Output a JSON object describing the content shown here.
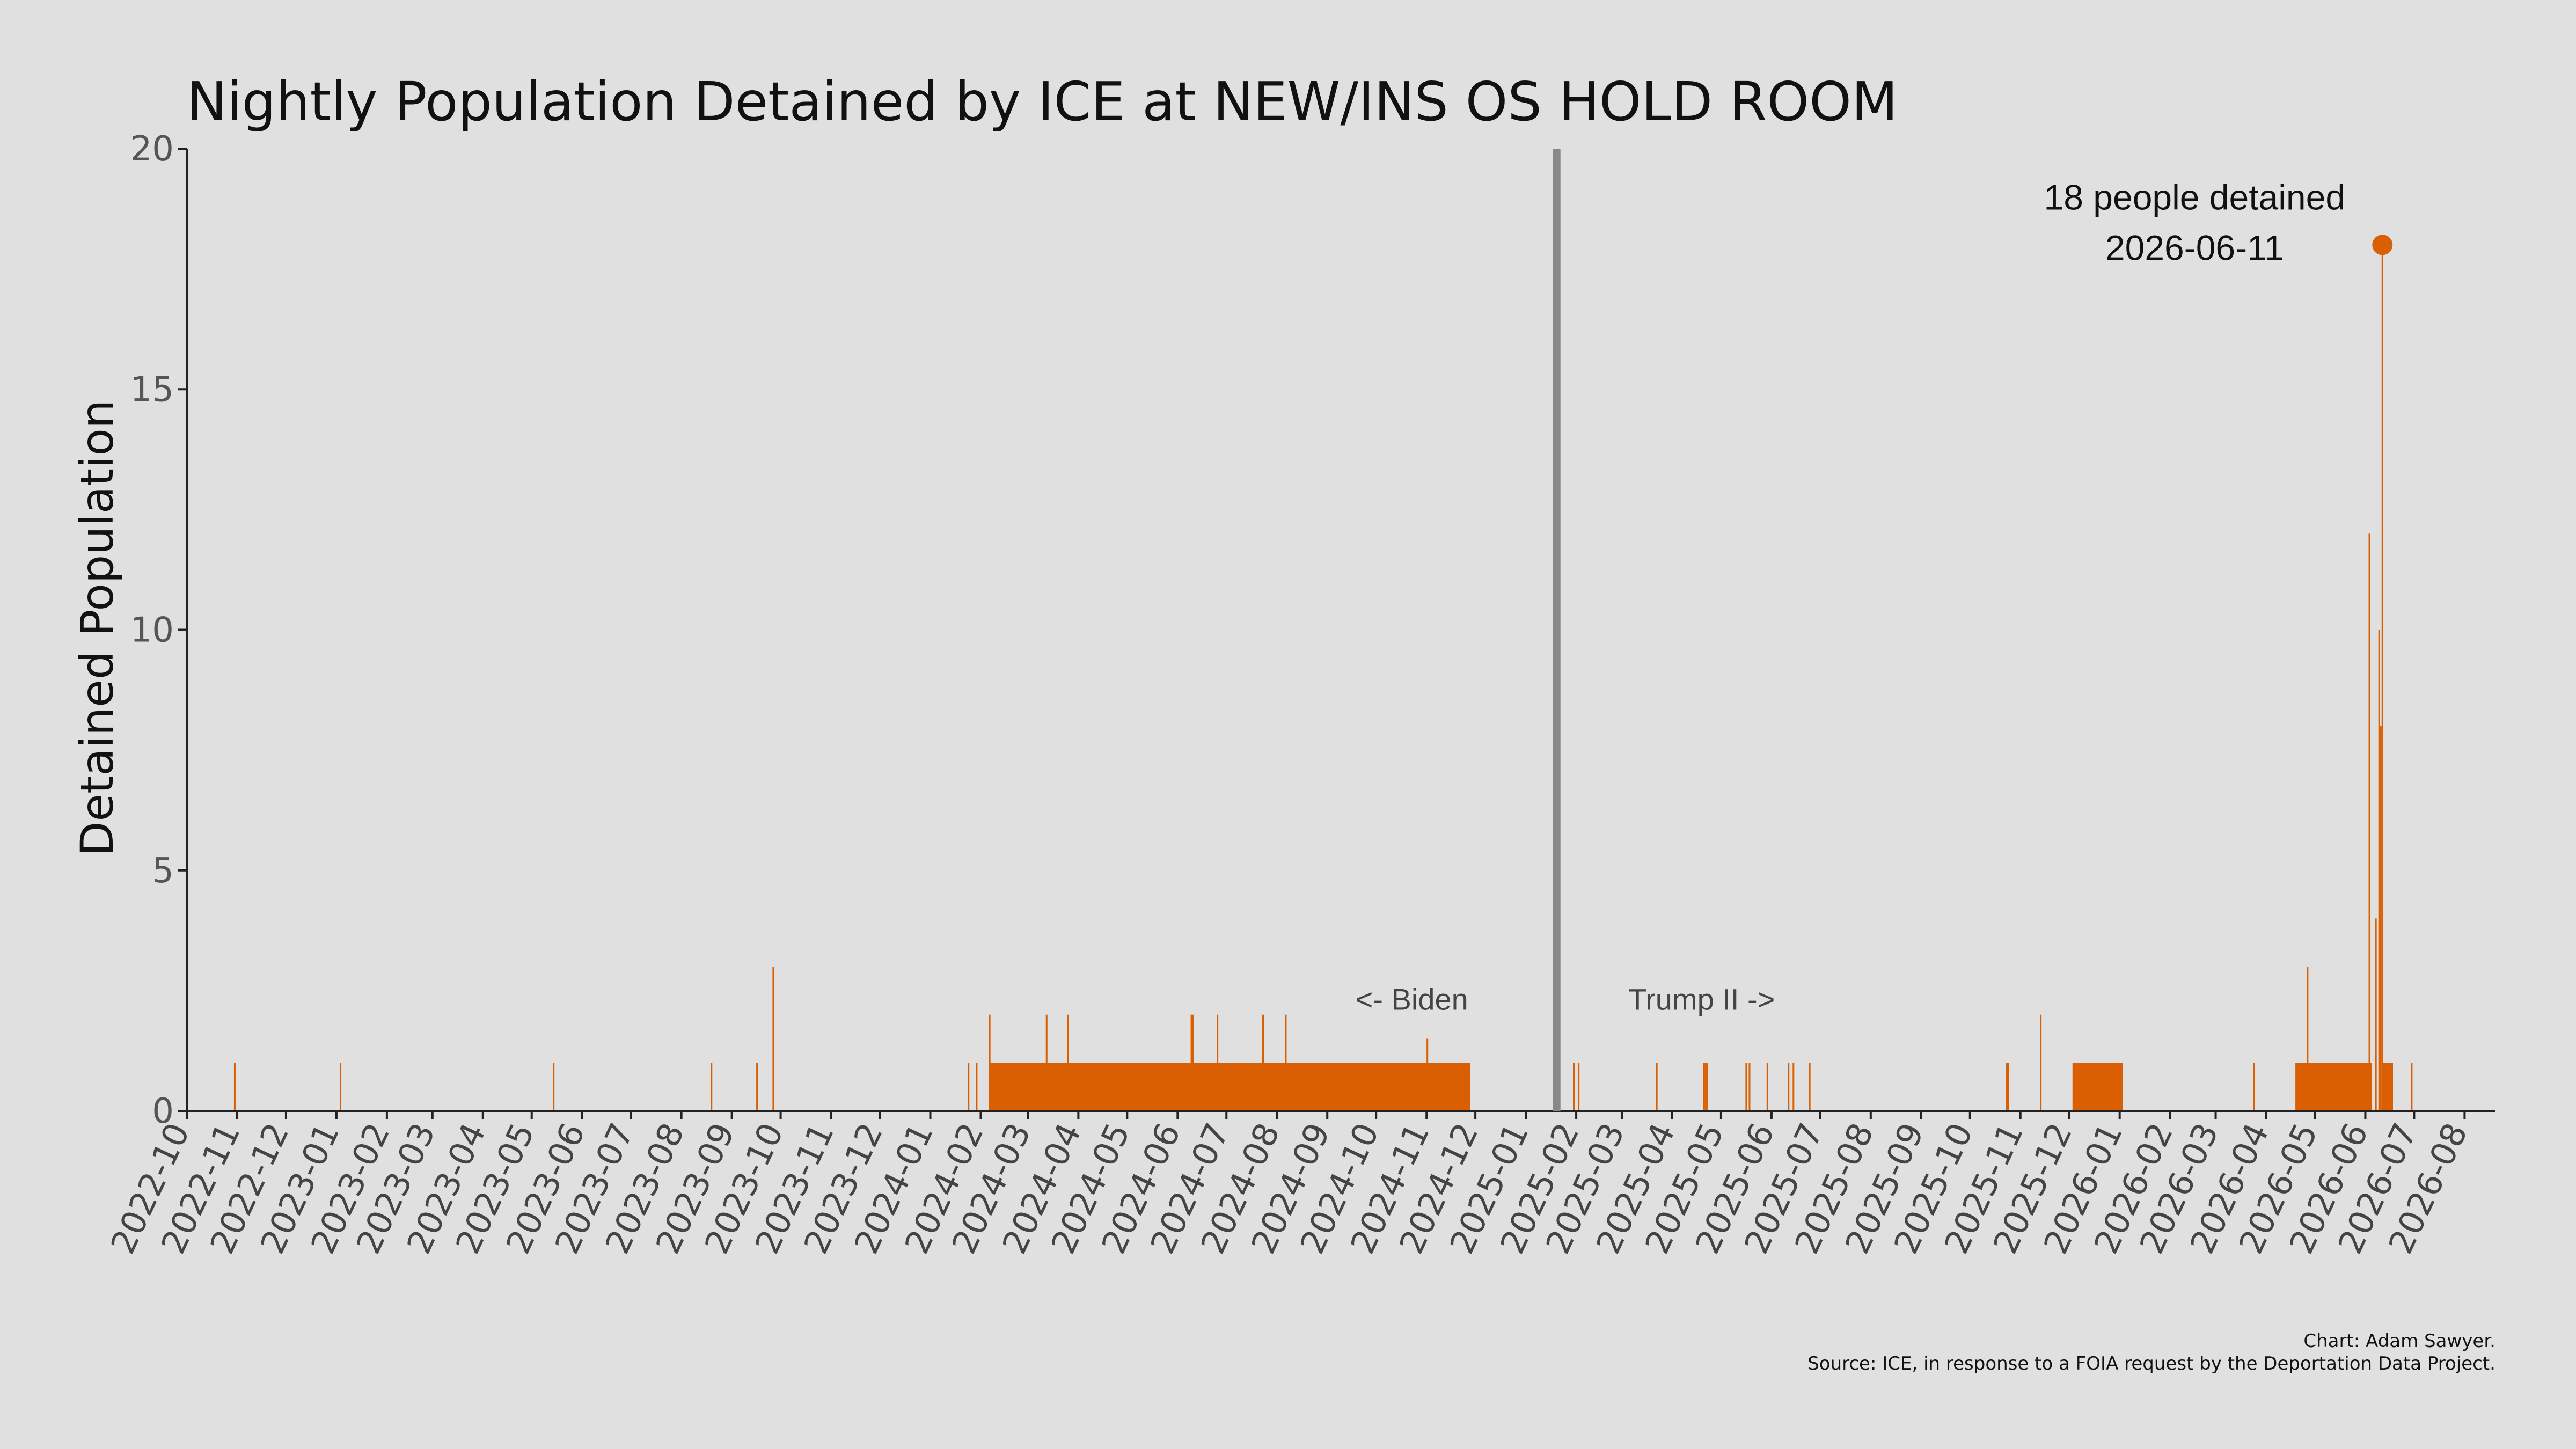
{
  "chart_data": {
    "type": "bar",
    "title": "Nightly Population Detained by ICE at NEW/INS OS HOLD ROOM",
    "xlabel": "",
    "ylabel": "Detained Population",
    "x_start": "2022-10-01",
    "x_end": "2026-08-20",
    "ylim": [
      0,
      20
    ],
    "yticks": [
      0,
      5,
      10,
      15,
      20
    ],
    "xticks": [
      "2022-10",
      "2022-11",
      "2022-12",
      "2023-01",
      "2023-02",
      "2023-03",
      "2023-04",
      "2023-05",
      "2023-06",
      "2023-07",
      "2023-08",
      "2023-09",
      "2023-10",
      "2023-11",
      "2023-12",
      "2024-01",
      "2024-02",
      "2024-03",
      "2024-04",
      "2024-05",
      "2024-06",
      "2024-07",
      "2024-08",
      "2024-09",
      "2024-10",
      "2024-11",
      "2024-12",
      "2025-01",
      "2025-02",
      "2025-03",
      "2025-04",
      "2025-05",
      "2025-06",
      "2025-07",
      "2025-08",
      "2025-09",
      "2025-10",
      "2025-11",
      "2025-12",
      "2026-01",
      "2026-02",
      "2026-03",
      "2026-04",
      "2026-05",
      "2026-06",
      "2026-07",
      "2026-08"
    ],
    "grid": false,
    "bar_color": "#d95f02",
    "series": [
      {
        "spans": [
          {
            "start": "2024-02-06",
            "end": "2024-11-27",
            "value": 1
          },
          {
            "start": "2025-12-03",
            "end": "2026-01-02",
            "value": 1
          },
          {
            "start": "2026-04-19",
            "end": "2026-06-04",
            "value": 1
          },
          {
            "start": "2026-06-12",
            "end": "2026-06-17",
            "value": 1
          }
        ],
        "points": [
          {
            "date": "2022-10-30",
            "value": 1
          },
          {
            "date": "2023-01-03",
            "value": 1
          },
          {
            "date": "2023-05-14",
            "value": 1
          },
          {
            "date": "2023-08-19",
            "value": 1
          },
          {
            "date": "2023-09-16",
            "value": 1
          },
          {
            "date": "2023-09-26",
            "value": 3
          },
          {
            "date": "2024-01-24",
            "value": 1
          },
          {
            "date": "2024-01-29",
            "value": 1
          },
          {
            "date": "2024-02-06",
            "value": 2
          },
          {
            "date": "2024-03-12",
            "value": 2
          },
          {
            "date": "2024-03-25",
            "value": 2
          },
          {
            "date": "2024-06-09",
            "value": 2
          },
          {
            "date": "2024-06-10",
            "value": 2
          },
          {
            "date": "2024-06-25",
            "value": 2
          },
          {
            "date": "2024-07-23",
            "value": 2
          },
          {
            "date": "2024-08-06",
            "value": 2
          },
          {
            "date": "2024-11-01",
            "value": 1.5
          },
          {
            "date": "2025-01-30",
            "value": 1
          },
          {
            "date": "2025-02-02",
            "value": 1
          },
          {
            "date": "2025-03-22",
            "value": 1
          },
          {
            "date": "2025-04-20",
            "value": 1
          },
          {
            "date": "2025-04-21",
            "value": 1
          },
          {
            "date": "2025-04-22",
            "value": 1
          },
          {
            "date": "2025-05-16",
            "value": 1
          },
          {
            "date": "2025-05-18",
            "value": 1
          },
          {
            "date": "2025-05-29",
            "value": 1
          },
          {
            "date": "2025-06-11",
            "value": 1
          },
          {
            "date": "2025-06-14",
            "value": 1
          },
          {
            "date": "2025-06-24",
            "value": 1
          },
          {
            "date": "2025-10-23",
            "value": 1
          },
          {
            "date": "2025-10-24",
            "value": 1
          },
          {
            "date": "2025-11-13",
            "value": 2
          },
          {
            "date": "2026-03-24",
            "value": 1
          },
          {
            "date": "2026-04-26",
            "value": 3
          },
          {
            "date": "2026-06-03",
            "value": 12
          },
          {
            "date": "2026-06-07",
            "value": 4
          },
          {
            "date": "2026-06-09",
            "value": 10
          },
          {
            "date": "2026-06-10",
            "value": 8
          },
          {
            "date": "2026-06-11",
            "value": 18
          },
          {
            "date": "2026-06-29",
            "value": 1
          }
        ]
      }
    ],
    "divider_date": "2025-01-20",
    "divider_color": "#888888",
    "era_labels": {
      "left": "<- Biden",
      "right": "Trump II ->"
    },
    "peak": {
      "date": "2026-06-11",
      "value": 18,
      "label_line1": "18 people detained",
      "label_line2": "2026-06-11"
    },
    "credits": {
      "line1": "Chart: Adam Sawyer.",
      "line2": "Source: ICE, in response to a FOIA request by the Deportation Data Project."
    }
  }
}
